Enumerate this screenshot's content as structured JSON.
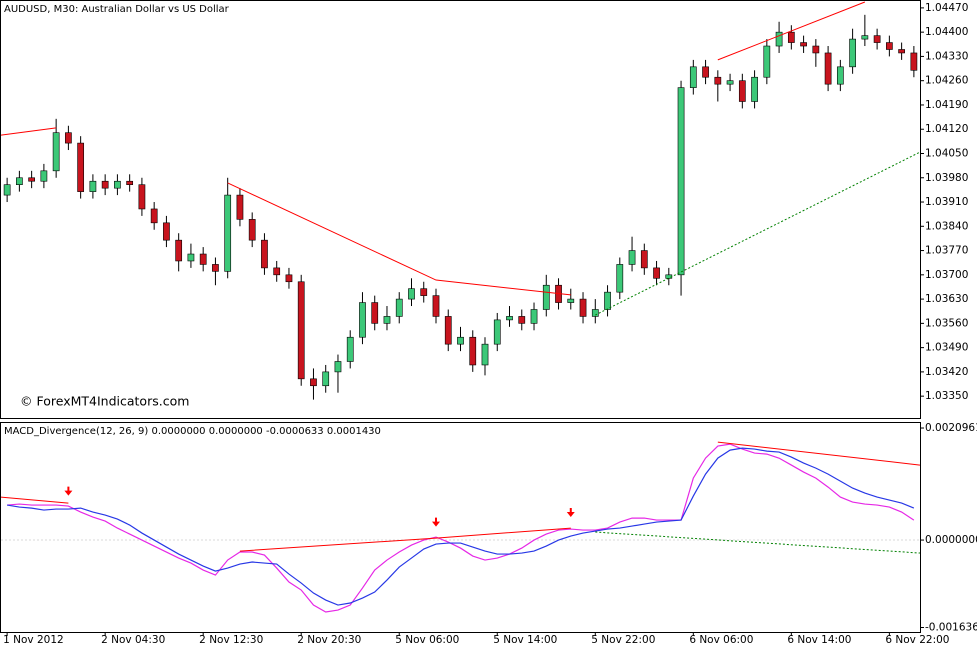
{
  "chart_data": [
    {
      "type": "candlestick",
      "title": "AUDUSD, M30:  Australian Dollar vs US Dollar",
      "watermark": "© ForexMT4Indicators.com",
      "up_color": "#3cc878",
      "down_color": "#c8141e",
      "xlim": [
        -0.5,
        74.5
      ],
      "ylim": [
        1.03287,
        1.04487
      ],
      "yticks": [
        {
          "value": 1.0447,
          "label": "1.04470"
        },
        {
          "value": 1.044,
          "label": "1.04400"
        },
        {
          "value": 1.0433,
          "label": "1.04330"
        },
        {
          "value": 1.0426,
          "label": "1.04260"
        },
        {
          "value": 1.0419,
          "label": "1.04190"
        },
        {
          "value": 1.0412,
          "label": "1.04120"
        },
        {
          "value": 1.0405,
          "label": "1.04050"
        },
        {
          "value": 1.0398,
          "label": "1.03980"
        },
        {
          "value": 1.0391,
          "label": "1.03910"
        },
        {
          "value": 1.0384,
          "label": "1.03840"
        },
        {
          "value": 1.0377,
          "label": "1.03770"
        },
        {
          "value": 1.037,
          "label": "1.03700"
        },
        {
          "value": 1.0363,
          "label": "1.03630"
        },
        {
          "value": 1.0356,
          "label": "1.03560"
        },
        {
          "value": 1.0349,
          "label": "1.03490"
        },
        {
          "value": 1.0342,
          "label": "1.03420"
        },
        {
          "value": 1.0335,
          "label": "1.03350"
        }
      ],
      "open": [
        1.0393,
        1.0396,
        1.0398,
        1.0397,
        1.04,
        1.0411,
        1.0408,
        1.0394,
        1.0397,
        1.0395,
        1.0397,
        1.0396,
        1.0389,
        1.0385,
        1.038,
        1.0374,
        1.0376,
        1.0373,
        1.0371,
        1.0393,
        1.0386,
        1.038,
        1.0372,
        1.037,
        1.0368,
        1.034,
        1.0338,
        1.0342,
        1.0345,
        1.0352,
        1.0362,
        1.0356,
        1.0358,
        1.0363,
        1.0366,
        1.0364,
        1.0358,
        1.035,
        1.0352,
        1.0344,
        1.035,
        1.0357,
        1.0358,
        1.0356,
        1.036,
        1.0367,
        1.0362,
        1.0363,
        1.0358,
        1.036,
        1.0365,
        1.0373,
        1.0377,
        1.0372,
        1.0369,
        1.037,
        1.0424,
        1.043,
        1.0427,
        1.0425,
        1.0426,
        1.042,
        1.0427,
        1.0436,
        1.044,
        1.0437,
        1.0436,
        1.0434,
        1.0425,
        1.043,
        1.0438,
        1.0439,
        1.0437,
        1.0435,
        1.0434
      ],
      "high": [
        1.0398,
        1.04,
        1.04,
        1.0402,
        1.0415,
        1.0413,
        1.041,
        1.0399,
        1.0399,
        1.0399,
        1.0399,
        1.0398,
        1.0391,
        1.0387,
        1.0382,
        1.0379,
        1.0378,
        1.0375,
        1.0398,
        1.0395,
        1.0388,
        1.0382,
        1.0374,
        1.0372,
        1.037,
        1.0343,
        1.0344,
        1.0347,
        1.0354,
        1.0365,
        1.0364,
        1.0361,
        1.0365,
        1.0369,
        1.0368,
        1.0366,
        1.036,
        1.0355,
        1.0354,
        1.0352,
        1.0359,
        1.0361,
        1.036,
        1.0362,
        1.037,
        1.0369,
        1.0366,
        1.0365,
        1.0363,
        1.0367,
        1.0375,
        1.0381,
        1.0379,
        1.0374,
        1.0372,
        1.0426,
        1.0432,
        1.0432,
        1.0429,
        1.0428,
        1.0428,
        1.0429,
        1.0438,
        1.0443,
        1.0442,
        1.0439,
        1.0438,
        1.0436,
        1.0432,
        1.0441,
        1.0445,
        1.0441,
        1.0439,
        1.0437,
        1.0436
      ],
      "low": [
        1.0391,
        1.0394,
        1.0395,
        1.0395,
        1.0398,
        1.0406,
        1.0392,
        1.0392,
        1.0393,
        1.0393,
        1.0394,
        1.0387,
        1.0383,
        1.0378,
        1.0371,
        1.0372,
        1.0371,
        1.0367,
        1.0369,
        1.0384,
        1.0378,
        1.037,
        1.0368,
        1.0366,
        1.0338,
        1.0334,
        1.0336,
        1.0336,
        1.0343,
        1.035,
        1.0354,
        1.0354,
        1.0356,
        1.0361,
        1.0362,
        1.0356,
        1.0348,
        1.0348,
        1.0342,
        1.0341,
        1.0348,
        1.0355,
        1.0354,
        1.0354,
        1.0358,
        1.036,
        1.036,
        1.0356,
        1.0356,
        1.0358,
        1.0363,
        1.0371,
        1.037,
        1.0367,
        1.0367,
        1.0364,
        1.0422,
        1.0425,
        1.042,
        1.0423,
        1.0418,
        1.0418,
        1.0425,
        1.0434,
        1.0435,
        1.0434,
        1.043,
        1.0423,
        1.0423,
        1.0428,
        1.0436,
        1.0435,
        1.0433,
        1.0432,
        1.0427
      ],
      "close": [
        1.0396,
        1.0398,
        1.0397,
        1.04,
        1.0411,
        1.0408,
        1.0394,
        1.0397,
        1.0395,
        1.0397,
        1.0396,
        1.0389,
        1.0385,
        1.038,
        1.0374,
        1.0376,
        1.0373,
        1.0371,
        1.0393,
        1.0386,
        1.038,
        1.0372,
        1.037,
        1.0368,
        1.034,
        1.0338,
        1.0342,
        1.0345,
        1.0352,
        1.0362,
        1.0356,
        1.0358,
        1.0363,
        1.0366,
        1.0364,
        1.0358,
        1.035,
        1.0352,
        1.0344,
        1.035,
        1.0357,
        1.0358,
        1.0356,
        1.036,
        1.0367,
        1.0362,
        1.0363,
        1.0358,
        1.036,
        1.0365,
        1.0373,
        1.0377,
        1.0372,
        1.0369,
        1.037,
        1.0424,
        1.043,
        1.0427,
        1.0425,
        1.0426,
        1.042,
        1.0427,
        1.0436,
        1.044,
        1.0437,
        1.0436,
        1.0434,
        1.0425,
        1.043,
        1.0438,
        1.0439,
        1.0437,
        1.0435,
        1.0434,
        1.0429
      ],
      "trend_lines": [
        {
          "color": "#ff0000",
          "dashed": false,
          "x": [
            -0.5,
            4
          ],
          "y": [
            1.04103,
            1.04124
          ]
        },
        {
          "color": "#ff0000",
          "dashed": false,
          "x": [
            18,
            35,
            46
          ],
          "y": [
            1.03965,
            1.03685,
            1.03642
          ]
        },
        {
          "color": "#ff0000",
          "dashed": false,
          "x": [
            58,
            70
          ],
          "y": [
            1.0432,
            1.04487
          ]
        },
        {
          "color": "#008000",
          "dashed": true,
          "x": [
            48,
            74.5
          ],
          "y": [
            1.03584,
            1.04054
          ]
        }
      ]
    },
    {
      "type": "line",
      "title": "MACD_Divergence(12, 26, 9) 0.0000000 0.0000000 -0.0000633 0.0001430",
      "xlim": [
        -0.5,
        74.5
      ],
      "ylim": [
        -0.00172,
        0.00219
      ],
      "yticks": [
        {
          "value": 0.0020961,
          "label": "0.0020961"
        },
        {
          "value": 0,
          "label": "0.0000000"
        },
        {
          "value": -0.001636,
          "label": "-0.0016360"
        }
      ],
      "xticks": [
        {
          "value": 0,
          "label": "1 Nov 2012"
        },
        {
          "value": 8,
          "label": "2 Nov 04:30"
        },
        {
          "value": 16,
          "label": "2 Nov 12:30"
        },
        {
          "value": 24,
          "label": "2 Nov 20:30"
        },
        {
          "value": 32,
          "label": "5 Nov 06:00"
        },
        {
          "value": 40,
          "label": "5 Nov 14:00"
        },
        {
          "value": 48,
          "label": "5 Nov 22:00"
        },
        {
          "value": 56,
          "label": "6 Nov 06:00"
        },
        {
          "value": 64,
          "label": "6 Nov 14:00"
        },
        {
          "value": 72,
          "label": "6 Nov 22:00"
        }
      ],
      "series": [
        {
          "color": "#e628e6",
          "values": [
            0.000655,
            0.000673,
            0.000655,
            0.000655,
            0.000655,
            0.000636,
            0.000524,
            0.00043,
            0.000355,
            0.000224,
            0.000112,
            0,
            -0.000112,
            -0.000224,
            -0.000337,
            -0.00043,
            -0.000561,
            -0.000655,
            -0.000374,
            -0.000224,
            -0.000224,
            -0.000281,
            -0.000524,
            -0.000785,
            -0.000935,
            -0.001216,
            -0.001346,
            -0.001309,
            -0.001216,
            -0.000898,
            -0.000561,
            -0.000374,
            -0.000224,
            -9.4e-05,
            0,
            5.6e-05,
            -3.7e-05,
            -0.00015,
            -0.000299,
            -0.000374,
            -0.000337,
            -0.000262,
            -0.00015,
            0,
            0.000112,
            0.000187,
            0.000206,
            0.000187,
            0.000187,
            0.000224,
            0.000337,
            0.000411,
            0.000411,
            0.000374,
            0.000374,
            0.000374,
            0.001159,
            0.001533,
            0.001758,
            0.001795,
            0.001702,
            0.001627,
            0.001608,
            0.001533,
            0.001403,
            0.001272,
            0.001159,
            0.000991,
            0.000804,
            0.000711,
            0.000673,
            0.000655,
            0.000617,
            0.000524,
            0.000374
          ]
        },
        {
          "color": "#2838e6",
          "values": [
            0.000655,
            0.000617,
            0.000598,
            0.000561,
            0.00058,
            0.00058,
            0.000598,
            0.000524,
            0.000467,
            0.000393,
            0.000281,
            0.000131,
            0,
            -0.000131,
            -0.000262,
            -0.000374,
            -0.000486,
            -0.00058,
            -0.000524,
            -0.000449,
            -0.000411,
            -0.00043,
            -0.000449,
            -0.000636,
            -0.000804,
            -0.000991,
            -0.001122,
            -0.001216,
            -0.001178,
            -0.001085,
            -0.000972,
            -0.000748,
            -0.000505,
            -0.000337,
            -0.000168,
            -7.5e-05,
            -5.6e-05,
            -5.6e-05,
            -0.000131,
            -0.000206,
            -0.000262,
            -0.000262,
            -0.000243,
            -0.000206,
            -0.000112,
            0,
            7.5e-05,
            0.000131,
            0.000168,
            0.000206,
            0.000224,
            0.000262,
            0.000299,
            0.000337,
            0.000355,
            0.000374,
            0.000823,
            0.001234,
            0.001533,
            0.001683,
            0.00172,
            0.001702,
            0.001664,
            0.001646,
            0.001552,
            0.00144,
            0.001346,
            0.001234,
            0.001103,
            0.000972,
            0.000879,
            0.000804,
            0.000748,
            0.000692,
            0.000598
          ]
        }
      ],
      "trend_lines": [
        {
          "color": "#ff0000",
          "dashed": false,
          "x": [
            -0.5,
            5
          ],
          "y": [
            0.000804,
            0.000692
          ]
        },
        {
          "color": "#ff0000",
          "dashed": false,
          "x": [
            19,
            35,
            46
          ],
          "y": [
            -0.000206,
            3.7e-05,
            0.000224
          ]
        },
        {
          "color": "#ff0000",
          "dashed": false,
          "x": [
            58,
            74.5
          ],
          "y": [
            0.001833,
            0.001403
          ]
        },
        {
          "color": "#008000",
          "dashed": true,
          "x": [
            48,
            74.5
          ],
          "y": [
            0.00015,
            -0.000243
          ]
        }
      ],
      "arrows": {
        "color": "#ff0000",
        "x": [
          5,
          35,
          46
        ],
        "y": [
          0.00085,
          0.00027,
          0.00045
        ]
      }
    }
  ]
}
